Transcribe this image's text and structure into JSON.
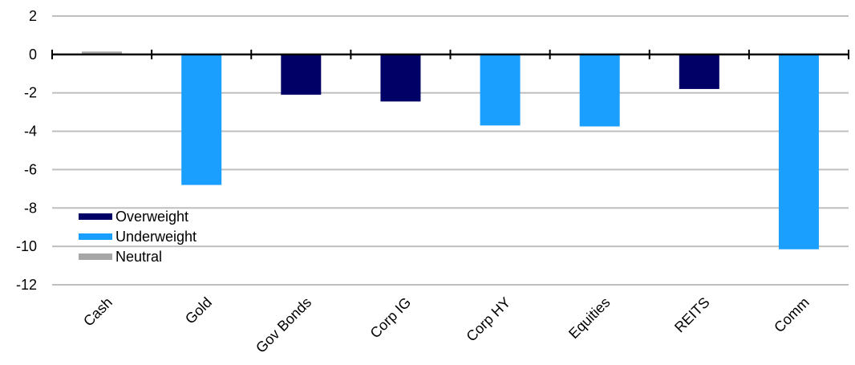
{
  "chart_data": {
    "type": "bar",
    "title": "",
    "xlabel": "",
    "ylabel": "",
    "categories": [
      "Cash",
      "Gold",
      "Gov Bonds",
      "Corp IG",
      "Corp HY",
      "Equities",
      "REITS",
      "Comm"
    ],
    "values": [
      0.15,
      -6.8,
      -2.1,
      -2.45,
      -3.7,
      -3.75,
      -1.8,
      -10.15
    ],
    "bar_status": [
      "Neutral",
      "Underweight",
      "Overweight",
      "Overweight",
      "Underweight",
      "Underweight",
      "Overweight",
      "Underweight"
    ],
    "ylim": [
      -12,
      2
    ],
    "yticks": [
      2,
      0,
      -2,
      -4,
      -6,
      -8,
      -10,
      -12
    ],
    "grid": true,
    "legend": {
      "placement": "bottom-left",
      "entries": [
        {
          "name": "Overweight",
          "color": "#000066"
        },
        {
          "name": "Underweight",
          "color": "#1a9fff"
        },
        {
          "name": "Neutral",
          "color": "#a6a6a6"
        }
      ]
    }
  }
}
